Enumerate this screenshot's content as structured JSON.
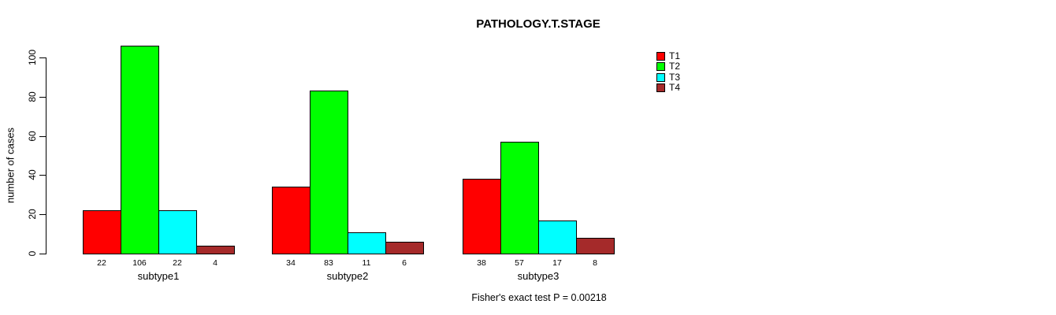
{
  "title": "PATHOLOGY.T.STAGE",
  "footer_note": "Fisher's exact test P = 0.00218",
  "chart_data": {
    "type": "bar",
    "title": "PATHOLOGY.T.STAGE",
    "xlabel": "",
    "ylabel": "number of cases",
    "categories": [
      "subtype1",
      "subtype2",
      "subtype3"
    ],
    "series": [
      {
        "name": "T1",
        "color": "#FF0000",
        "values": [
          22,
          34,
          38
        ]
      },
      {
        "name": "T2",
        "color": "#00FF00",
        "values": [
          106,
          83,
          57
        ]
      },
      {
        "name": "T3",
        "color": "#00FFFF",
        "values": [
          22,
          11,
          17
        ]
      },
      {
        "name": "T4",
        "color": "#A52A2A",
        "values": [
          4,
          6,
          8
        ]
      }
    ],
    "bar_value_labels": [
      [
        22,
        106,
        22,
        4
      ],
      [
        34,
        83,
        11,
        6
      ],
      [
        38,
        57,
        17,
        8
      ]
    ],
    "y_ticks": [
      0,
      20,
      40,
      60,
      80,
      100
    ],
    "ylim": [
      0,
      106
    ],
    "grid": false,
    "legend_position": "top-right",
    "legend_entries": [
      "T1",
      "T2",
      "T3",
      "T4"
    ],
    "annotation": "Fisher's exact test P = 0.00218"
  }
}
